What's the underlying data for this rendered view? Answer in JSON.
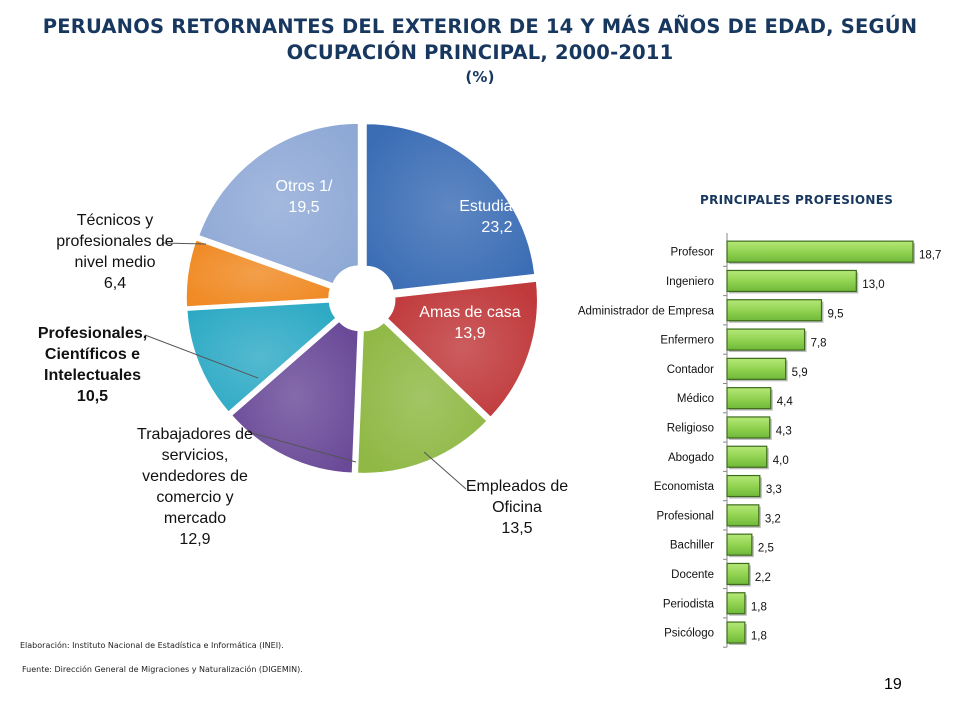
{
  "page": {
    "title": "PERUANOS RETORNANTES DEL EXTERIOR DE 14 Y MÁS AÑOS DE EDAD, SEGÚN OCUPACIÓN PRINCIPAL, 2000-2011",
    "unit": "(%)",
    "source_elaboracion": "Elaboración: Instituto Nacional de Estadística e Informática (INEI).",
    "source_fuente": "Fuente: Dirección General de Migraciones y Naturalización (DIGEMIN).",
    "page_number": "19"
  },
  "chart_data": [
    {
      "type": "pie",
      "title": "",
      "labels": [
        "Estudiante",
        "Amas de casa",
        "Empleados de Oficina",
        "Trabajadores de servicios, vendedores de comercio y mercado",
        "Profesionales, Científicos e Intelectuales",
        "Técnicos y profesionales de nivel medio",
        "Otros 1/"
      ],
      "values": [
        23.2,
        13.9,
        13.5,
        12.9,
        10.5,
        6.4,
        19.5
      ],
      "value_labels": [
        "23,2",
        "13,9",
        "13,5",
        "12,9",
        "10,5",
        "6,4",
        "19,5"
      ],
      "colors": [
        "#3b6db5",
        "#c0393b",
        "#8fb844",
        "#6a4a98",
        "#2eaac5",
        "#f08a24",
        "#8fa9d6"
      ]
    },
    {
      "type": "bar",
      "title": "PRINCIPALES PROFESIONES",
      "orientation": "horizontal",
      "categories": [
        "Profesor",
        "Ingeniero",
        "Administrador de Empresa",
        "Enfermero",
        "Contador",
        "Médico",
        "Religioso",
        "Abogado",
        "Economista",
        "Profesional",
        "Bachiller",
        "Docente",
        "Periodista",
        "Psicólogo"
      ],
      "values": [
        18.7,
        13.0,
        9.5,
        7.8,
        5.9,
        4.4,
        4.3,
        4.0,
        3.3,
        3.2,
        2.5,
        2.2,
        1.8,
        1.8
      ],
      "value_labels": [
        "18,7",
        "13,0",
        "9,5",
        "7,8",
        "5,9",
        "4,4",
        "4,3",
        "4,0",
        "3,3",
        "3,2",
        "2,5",
        "2,2",
        "1,8",
        "1,8"
      ],
      "bar_color": "#8fd14f",
      "xlabel": "",
      "ylabel": ""
    }
  ]
}
